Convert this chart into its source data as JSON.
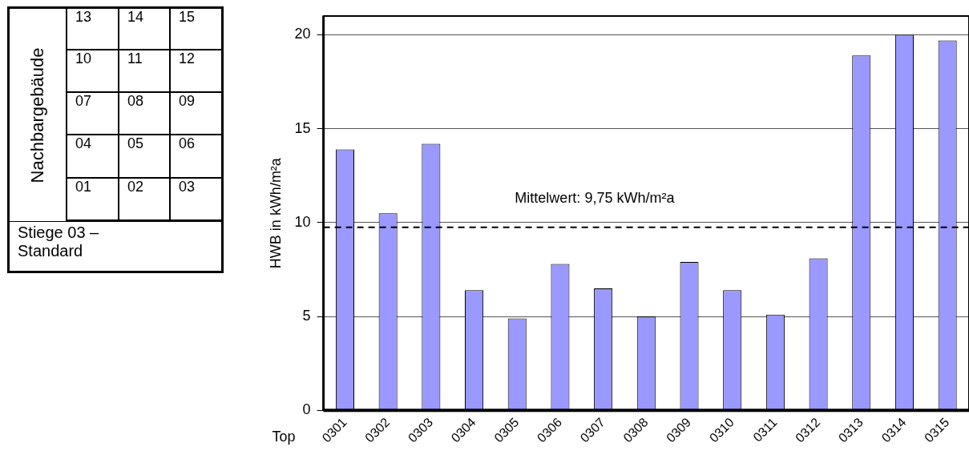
{
  "chart_data": {
    "type": "bar",
    "xlabel": "Top",
    "ylabel": "HWB in kWh/m²a",
    "categories": [
      "0301",
      "0302",
      "0303",
      "0304",
      "0305",
      "0306",
      "0307",
      "0308",
      "0309",
      "0310",
      "0311",
      "0312",
      "0313",
      "0314",
      "0315"
    ],
    "values": [
      13.9,
      10.5,
      14.2,
      6.4,
      4.9,
      7.8,
      6.5,
      5.0,
      7.9,
      6.4,
      5.1,
      8.1,
      18.9,
      20.0,
      19.7
    ],
    "color": "#9999ff",
    "ylim": [
      0,
      21
    ],
    "yticks": [
      0,
      5,
      10,
      15,
      20
    ],
    "grid": "y",
    "ref_lines": [
      {
        "axis": "y",
        "value": 9.75,
        "label": "Mittelwert: 9,75 kWh/m²a",
        "line_style": "dashed",
        "color": "#000000"
      }
    ],
    "annotations": [
      "Nachbargebäude",
      "13",
      "14",
      "15",
      "10",
      "11",
      "12",
      "07",
      "08",
      "09",
      "04",
      "05",
      "06",
      "01",
      "02",
      "03",
      "Stiege 03 – Standard"
    ]
  }
}
